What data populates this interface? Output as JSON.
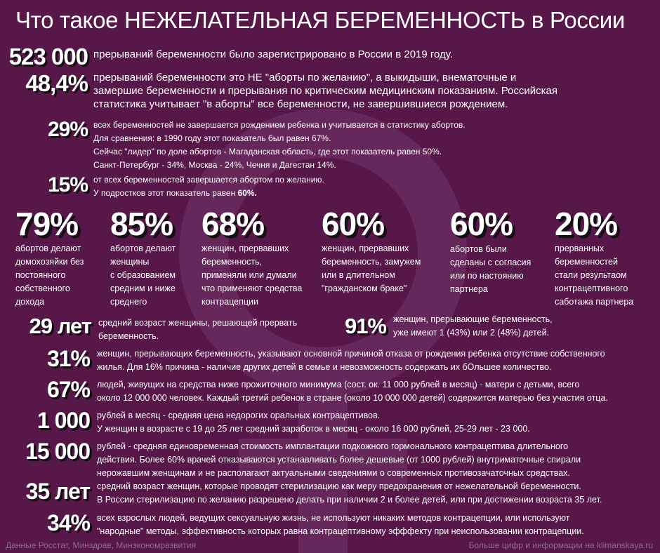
{
  "header": {
    "title": "Что такое НЕЖЕЛАТЕЛЬНАЯ БЕРЕМЕННОСТЬ в России"
  },
  "top": [
    {
      "stat": "523 000",
      "lines": [
        "прерываний беременности было зарегистрировано в России в 2019 году."
      ]
    },
    {
      "stat": "48,4%",
      "lines": [
        "прерываний беременности это НЕ \"аборты по желанию\", а выкидыши, внематочные и",
        "замершие беременности и прерывания по критическим медицинским показаниям. Российская",
        "статистика учитывает \"в аборты\" все беременности, не завершившиеся рождением."
      ]
    },
    {
      "stat": "29%",
      "lines": [
        "всех беременностей не завершается рождением ребенка и учитывается в статистику абортов.",
        "Для сравнения: в 1990 году этот показатель был равен 67%.",
        "Сейчас \"лидер\" по доле абортов - Магаданская область, где этот показатель равен 50%.",
        "Санкт-Петербург - 34%, Москва - 24%, Чечня и Дагестан 14%."
      ]
    },
    {
      "stat": "15%",
      "lines": [
        "от всех беременностей завершается абортом по желанию."
      ],
      "note": "У подростков этот показатель равен ",
      "note_bold": "60%."
    }
  ],
  "columns": [
    {
      "stat": "79%",
      "lines": [
        "абортов делают",
        "домохозяйки без",
        "постоянного",
        "собственного",
        "дохода"
      ]
    },
    {
      "stat": "85%",
      "lines": [
        "абортов делают",
        "женщины",
        "с образованием",
        "средним и ниже",
        "среднего"
      ]
    },
    {
      "stat": "68%",
      "lines": [
        "женщин, прервавших",
        "беременность,",
        "применяли или думали",
        "что применяют средства",
        "контрацепции"
      ]
    },
    {
      "stat": "60%",
      "lines": [
        "женщин, прервавших",
        "беременность, замужем",
        "или в длительном",
        "\"гражданском браке\""
      ]
    },
    {
      "stat": "60%",
      "lines": [
        "абортов были",
        "сделаны с согласия",
        "или по настоянию",
        "партнера"
      ]
    },
    {
      "stat": "20%",
      "lines": [
        "прерванных",
        "беременностей",
        "стали результаом",
        "контрацептивного",
        "саботажа партнера"
      ]
    }
  ],
  "pair": [
    {
      "stat": "29 лет",
      "lines": [
        "средний возраст женщины, решающей прервать",
        "беременность."
      ]
    },
    {
      "stat": "91%",
      "lines": [
        "женщин, прерывающие беременность,",
        "уже имеют 1 (43%) или 2 (48%) детей."
      ]
    }
  ],
  "bottom": [
    {
      "stat": "31%",
      "lines": [
        "женщин, прерывающих беременность, указывают основной причиной отказа от рождения ребенка отсутствие собственного",
        "жилья. Для 16% причина - наличие других детей в семье и невозможность содержать их бОльшее количество."
      ]
    },
    {
      "stat": "67%",
      "lines": [
        "людей, живущих на средства ниже прожиточного минимума (сост. ок. 11 000 рублей в месяц) - матери с детьми, всего",
        "около 12 000 000 человек. Каждый третий ребенок в стране (около 10 000 000 детей) содержится матерью без участия отца."
      ]
    },
    {
      "stat": "1 000",
      "lines": [
        "рублей в месяц - средняя цена недорогих оральных контрацептивов.",
        "У женщин в возрасте с 19 до 25 лет средний заработок в месяц - около 16 000 рублей, 25-29 лет - 23 000."
      ]
    },
    {
      "stat": "15 000",
      "lines": [
        "рублей - средняя единовременная стоимость имплантации подкожного гормонального контрацептива длительного",
        "действия. Более 60% врачей отказываются устанавливать более дешевые (от 1000 рублей) внутриматочные спирали",
        "нерожавшим женщинам и не располагают актуальными сведениями о современных противозачаточных средствах."
      ]
    },
    {
      "stat": "35 лет",
      "lines": [
        "средний возраст женщин, которые проводят стерилизацию как меру предохранения от нежелательной беременности.",
        "В России стерилизацию по желанию разрешено делать при наличии 2 и более детей, или при достижении возраста 35 лет."
      ]
    },
    {
      "stat": "34%",
      "lines": [
        "всех взрослых людей, ведущих сексуальную жизнь, не используют никаких методов контрацепции, или используют",
        "\"народные\" методы, эффективность которых равна контрацептивному эфффекту при неиспользовании контрацепции."
      ]
    }
  ],
  "footer": {
    "left": "Данные Росстат, Минздрав, Минэкономразвития",
    "right": "Больше цифр и информации на klimanskaya.ru"
  }
}
